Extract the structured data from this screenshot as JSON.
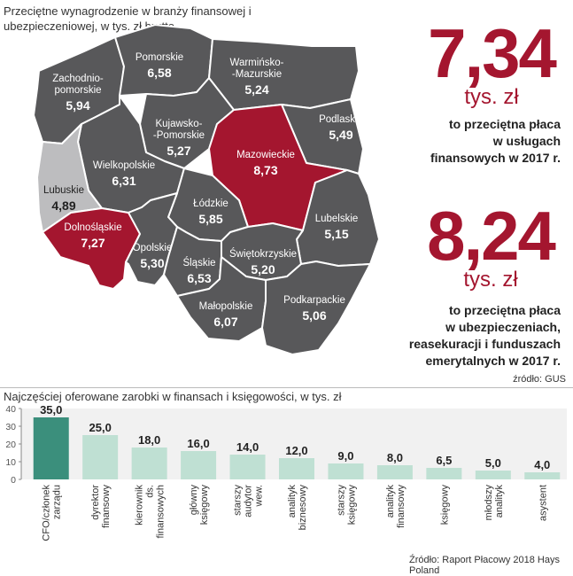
{
  "map": {
    "title": "Przeciętne wynagrodzenie w branży finansowej i ubezpieczeniowej, w tys. zł brutto",
    "regions": [
      {
        "name": "Zachodnio-pomorskie",
        "label_lines": [
          "Zachodnio-",
          "pomorskie"
        ],
        "value": "5,94",
        "highlight": "dark"
      },
      {
        "name": "Pomorskie",
        "label_lines": [
          "Pomorskie"
        ],
        "value": "6,58",
        "highlight": "dark"
      },
      {
        "name": "Warmińsko-Mazurskie",
        "label_lines": [
          "Warmińsko-",
          "-Mazurskie"
        ],
        "value": "5,24",
        "highlight": "dark"
      },
      {
        "name": "Kujawsko-Pomorskie",
        "label_lines": [
          "Kujawsko-",
          "-Pomorskie"
        ],
        "value": "5,27",
        "highlight": "dark"
      },
      {
        "name": "Podlaskie",
        "label_lines": [
          "Podlaskie"
        ],
        "value": "5,49",
        "highlight": "dark"
      },
      {
        "name": "Mazowieckie",
        "label_lines": [
          "Mazowieckie"
        ],
        "value": "8,73",
        "highlight": "max"
      },
      {
        "name": "Wielkopolskie",
        "label_lines": [
          "Wielkopolskie"
        ],
        "value": "6,31",
        "highlight": "dark"
      },
      {
        "name": "Lubuskie",
        "label_lines": [
          "Lubuskie"
        ],
        "value": "4,89",
        "highlight": "min"
      },
      {
        "name": "Łódzkie",
        "label_lines": [
          "Łódzkie"
        ],
        "value": "5,85",
        "highlight": "dark"
      },
      {
        "name": "Lubelskie",
        "label_lines": [
          "Lubelskie"
        ],
        "value": "5,15",
        "highlight": "dark"
      },
      {
        "name": "Dolnośląskie",
        "label_lines": [
          "Dolnośląskie"
        ],
        "value": "7,27",
        "highlight": "max"
      },
      {
        "name": "Opolskie",
        "label_lines": [
          "Opolskie"
        ],
        "value": "5,30",
        "highlight": "dark"
      },
      {
        "name": "Śląskie",
        "label_lines": [
          "Śląskie"
        ],
        "value": "6,53",
        "highlight": "dark"
      },
      {
        "name": "Świętokrzyskie",
        "label_lines": [
          "Świętokrzyskie"
        ],
        "value": "5,20",
        "highlight": "dark"
      },
      {
        "name": "Małopolskie",
        "label_lines": [
          "Małopolskie"
        ],
        "value": "6,07",
        "highlight": "dark"
      },
      {
        "name": "Podkarpackie",
        "label_lines": [
          "Podkarpackie"
        ],
        "value": "5,06",
        "highlight": "dark"
      }
    ]
  },
  "stat1": {
    "value": "7,34",
    "unit": "tys. zł",
    "desc": [
      "to przeciętna płaca",
      "w usługach",
      "finansowych w 2017 r."
    ]
  },
  "stat2": {
    "value": "8,24",
    "unit": "tys. zł",
    "desc": [
      "to przeciętna płaca",
      "w ubezpieczeniach,",
      "reasekuracji i funduszach",
      "emerytalnych w 2017 r."
    ]
  },
  "source1": "źródło: GUS",
  "source2": "Źródło: Raport Płacowy 2018 Hays Poland",
  "colors": {
    "map_dark": "#58585a",
    "map_max": "#a4162f",
    "map_min": "#bdbdbf",
    "bar_main": "#3b8f7c",
    "bar_light": "#bfe0d3",
    "axis_text": "#555555"
  },
  "chart_data": {
    "type": "bar",
    "title": "Najczęściej oferowane zarobki w finansach i księgowości, w tys. zł",
    "categories": [
      [
        "CFO/członek",
        "zarządu"
      ],
      [
        "dyrektor",
        "finansowy"
      ],
      [
        "kierownik",
        "ds.",
        "finansowych"
      ],
      [
        "główny",
        "księgowy"
      ],
      [
        "starszy",
        "audytor",
        "wew."
      ],
      [
        "analityk",
        "biznesowy"
      ],
      [
        "starszy",
        "księgowy"
      ],
      [
        "analityk",
        "finansowy"
      ],
      [
        "księgowy"
      ],
      [
        "młodszy",
        "analityk"
      ],
      [
        "asystent"
      ]
    ],
    "values": [
      35.0,
      25.0,
      18.0,
      16.0,
      14.0,
      12.0,
      9.0,
      8.0,
      6.5,
      5.0,
      4.0
    ],
    "value_labels": [
      "35,0",
      "25,0",
      "18,0",
      "16,0",
      "14,0",
      "12,0",
      "9,0",
      "8,0",
      "6,5",
      "5,0",
      "4,0"
    ],
    "ylim": [
      0,
      40
    ],
    "yticks": [
      0,
      10,
      20,
      30,
      40
    ],
    "grid": false
  }
}
